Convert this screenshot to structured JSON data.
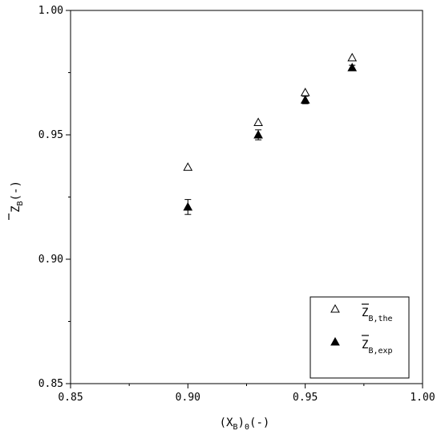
{
  "chart_data": {
    "type": "scatter",
    "title": "",
    "xlabel": {
      "main": "(X",
      "sub": "B",
      "mid": ")",
      "sub2": "0",
      "tail": "(-)"
    },
    "ylabel": {
      "main": "Z",
      "sub": "B",
      "tail": "(-)"
    },
    "xlim": [
      0.85,
      1.0
    ],
    "ylim": [
      0.85,
      1.0
    ],
    "xticks": [
      0.85,
      0.9,
      0.95,
      1.0
    ],
    "yticks": [
      0.85,
      0.9,
      0.95,
      1.0
    ],
    "xtick_labels": [
      "0.85",
      "0.90",
      "0.95",
      "1.00"
    ],
    "ytick_labels": [
      "0.85",
      "0.90",
      "0.95",
      "1.00"
    ],
    "grid": false,
    "legend_position": "bottom-right",
    "series": [
      {
        "name": "Z_B,the",
        "legend": {
          "main": "Z",
          "sub": "B,the"
        },
        "marker": "open-triangle",
        "x": [
          0.9,
          0.93,
          0.95,
          0.97
        ],
        "y": [
          0.937,
          0.955,
          0.967,
          0.981
        ]
      },
      {
        "name": "Z_B,exp",
        "legend": {
          "main": "Z",
          "sub": "B,exp"
        },
        "marker": "filled-triangle",
        "x": [
          0.9,
          0.93,
          0.95,
          0.97
        ],
        "y": [
          0.921,
          0.95,
          0.964,
          0.977
        ],
        "error": [
          0.003,
          0.002,
          0.0015,
          0.001
        ]
      }
    ]
  }
}
